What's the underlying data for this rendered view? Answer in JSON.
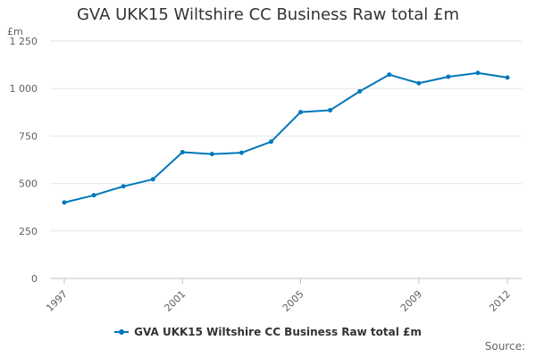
{
  "chart_data": {
    "type": "line",
    "title": "GVA UKK15 Wiltshire CC Business Raw total £m",
    "ylabel": "£m",
    "xlabel": "",
    "x": [
      1997,
      1998,
      1999,
      2000,
      2001,
      2002,
      2003,
      2004,
      2005,
      2006,
      2007,
      2008,
      2009,
      2010,
      2011,
      2012
    ],
    "x_tick_labels": [
      "1997",
      "2001",
      "2005",
      "2009",
      "2012"
    ],
    "y_tick_labels": [
      "0",
      "250",
      "500",
      "750",
      "1 000",
      "1 250"
    ],
    "y_ticks": [
      0,
      250,
      500,
      750,
      1000,
      1250
    ],
    "ylim": [
      0,
      1250
    ],
    "grid": true,
    "legend": "bottom",
    "series": [
      {
        "name": "GVA UKK15 Wiltshire CC Business Raw total £m",
        "color": "#0077bb",
        "values": [
          400,
          438,
          485,
          522,
          665,
          655,
          662,
          720,
          876,
          886,
          985,
          1073,
          1028,
          1062,
          1082,
          1058
        ]
      }
    ]
  },
  "source_label": "Source:"
}
